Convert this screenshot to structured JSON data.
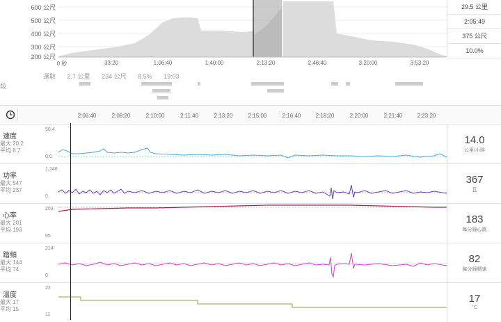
{
  "overview": {
    "elevation_labels": [
      "600 公尺",
      "500 公尺",
      "400 公尺",
      "300 公尺",
      "200 公尺"
    ],
    "time_ticks": [
      "0 秒",
      "33:20",
      "1:06:40",
      "1:40:00",
      "2:13:20",
      "2:46:40",
      "3:20:00",
      "3:53:20"
    ],
    "stats": [
      "29.5 公里",
      "2:05:49",
      "375 公尺",
      "10.0%"
    ]
  },
  "selection": {
    "label": "選取",
    "distance": "2.7 公里",
    "elevation": "234 公尺",
    "grade": "8.5%",
    "time": "19:03"
  },
  "segments_label": "段",
  "timeline": {
    "clock_icon": "clock-icon",
    "ticks": [
      "2:06:40",
      "2:08:20",
      "2:10:00",
      "2:11:40",
      "2:13:20",
      "2:15:00",
      "2:16:40",
      "2:18:20",
      "2:20:00",
      "2:21:40",
      "2:23:20"
    ]
  },
  "metrics": [
    {
      "name": "速度",
      "max": "最大 20.2",
      "avg": "平均 8.7",
      "ytop": "50.4",
      "ybot": "0.0",
      "value": "14.0",
      "unit": "公里/小時",
      "color": "#4aa8d8"
    },
    {
      "name": "功率",
      "max": "最大 547",
      "avg": "平均 237",
      "ytop": "1,246",
      "ybot": "0",
      "value": "367",
      "unit": "瓦",
      "color": "#6a3fb5"
    },
    {
      "name": "心率",
      "max": "最大 201",
      "avg": "平均 193",
      "ytop": "203",
      "ybot": "95",
      "value": "183",
      "unit": "每分鐘心跳",
      "color": "#a3214a"
    },
    {
      "name": "踏頻",
      "max": "最大 144",
      "avg": "平均 74",
      "ytop": "214",
      "ybot": "0",
      "value": "82",
      "unit": "每分鐘轉速",
      "color": "#d23fd0"
    },
    {
      "name": "溫度",
      "max": "最大 17",
      "avg": "平均 15",
      "ytop": "22",
      "ybot": "11",
      "value": "17",
      "unit": "°C",
      "color": "#a8b06a"
    }
  ]
}
